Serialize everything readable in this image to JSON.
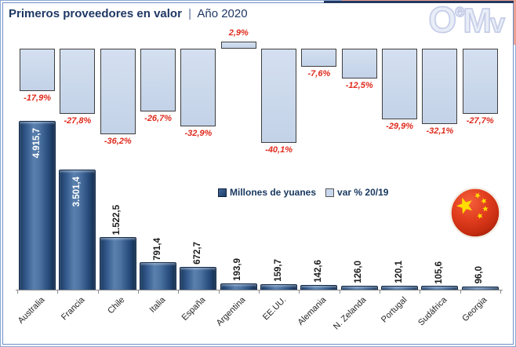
{
  "header": {
    "title": "Primeros proveedores en valor",
    "separator": "|",
    "subtitle": "Año 2020",
    "logo": {
      "o": "O",
      "e": "e",
      "m": "M",
      "v": "v"
    }
  },
  "legend": {
    "items": [
      {
        "label": "Millones de yuanes",
        "swatch_color": "#2F5486"
      },
      {
        "label": "var % 20/19",
        "swatch_color": "#C9D7EC"
      }
    ],
    "position": "middle-right"
  },
  "chart_data": {
    "type": "bar",
    "title": "Primeros proveedores en valor | Año 2020",
    "categories": [
      "Australia",
      "Francia",
      "Chile",
      "Italia",
      "España",
      "Argentina",
      "EE.UU.",
      "Alemania",
      "N. Zelanda",
      "Portugal",
      "Sudáfrica",
      "Georgia"
    ],
    "series": [
      {
        "name": "Millones de yuanes",
        "values": [
          4915.7,
          3501.4,
          1522.5,
          791.4,
          672.7,
          193.9,
          159.7,
          142.6,
          126.0,
          120.1,
          105.6,
          96.0
        ],
        "labels": [
          "4.915,7",
          "3.501,4",
          "1.522,5",
          "791,4",
          "672,7",
          "193,9",
          "159,7",
          "142,6",
          "126,0",
          "120,1",
          "105,6",
          "96,0"
        ],
        "axis": "value",
        "ylim": [
          0,
          5000
        ]
      },
      {
        "name": "var % 20/19",
        "values": [
          -17.9,
          -27.8,
          -36.2,
          -26.7,
          -32.9,
          2.9,
          -40.1,
          -7.6,
          -12.5,
          -29.9,
          -32.1,
          -27.7
        ],
        "labels": [
          "-17,9%",
          "-27,8%",
          "-36,2%",
          "-26,7%",
          "-32,9%",
          "2,9%",
          "-40,1%",
          "-7,6%",
          "-12,5%",
          "-29,9%",
          "-32,1%",
          "-27,7%"
        ],
        "axis": "percent",
        "ylim": [
          -45,
          5
        ]
      }
    ],
    "grid": false,
    "category_label_rotation_deg": -45,
    "value_label_rotation_deg": -90
  },
  "colors": {
    "title_navy": "#1F3864",
    "value_bar": "#2F5486",
    "var_bar_fill": "#C9D7EC",
    "var_label_red": "#E02B1D",
    "frame_blue": "#7B98CC",
    "flag_red": "#DE2910",
    "flag_yellow": "#FFDE00",
    "logo_lavender": "#CCD3E9"
  },
  "flag": {
    "name": "china-flag"
  }
}
